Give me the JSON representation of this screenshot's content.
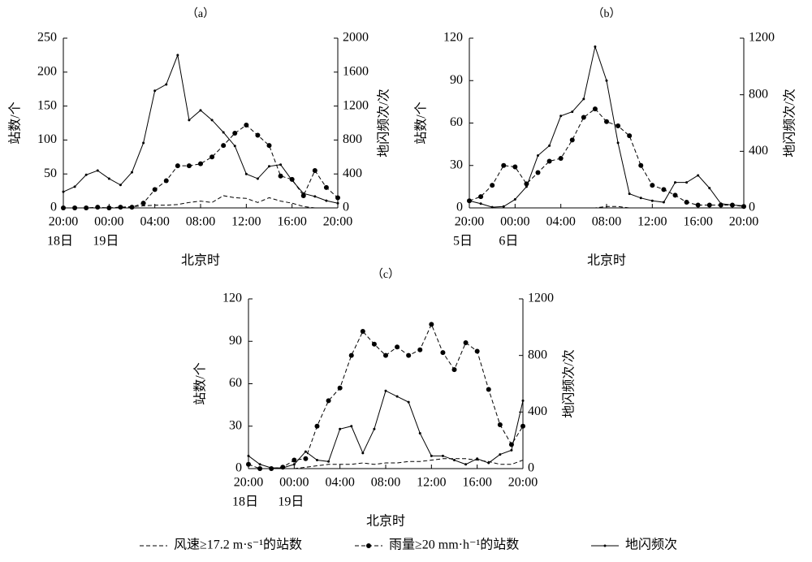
{
  "charts": [
    {
      "type": "line",
      "title": "（a）",
      "ylabel": "站数/个",
      "y2label": "地闪频次/次",
      "xlabel": "北京时",
      "x": [
        0,
        1,
        2,
        3,
        4,
        5,
        6,
        7,
        8,
        9,
        10,
        11,
        12,
        13,
        14,
        15,
        16,
        17,
        18,
        19,
        20,
        21,
        22,
        23,
        24
      ],
      "xlim": [
        0,
        24
      ],
      "xticks": [
        {
          "value": 0,
          "label": "20:00"
        },
        {
          "value": 4,
          "label": "00:00"
        },
        {
          "value": 8,
          "label": "04:00"
        },
        {
          "value": 12,
          "label": "08:00"
        },
        {
          "value": 16,
          "label": "12:00"
        },
        {
          "value": 20,
          "label": "16:00"
        },
        {
          "value": 24,
          "label": "20:00"
        }
      ],
      "day_labels": [
        {
          "value": 0,
          "label": "18日"
        },
        {
          "value": 4,
          "label": "19日"
        }
      ],
      "ylim": [
        0,
        250
      ],
      "yticks": [
        0,
        50,
        100,
        150,
        200,
        250
      ],
      "y2lim": [
        0,
        2000
      ],
      "y2ticks": [
        0,
        400,
        800,
        1200,
        1600,
        2000
      ],
      "series": [
        {
          "style": "dashed",
          "color": "#000000",
          "values": [
            0,
            0,
            0,
            0,
            0,
            1,
            2,
            3,
            4,
            4,
            5,
            8,
            10,
            8,
            18,
            15,
            14,
            8,
            15,
            10,
            7,
            2,
            0,
            0,
            0
          ]
        },
        {
          "style": "dashed-markers",
          "color": "#000000",
          "values": [
            0,
            0,
            0,
            1,
            0,
            1,
            1,
            7,
            27,
            40,
            62,
            62,
            65,
            75,
            92,
            110,
            122,
            107,
            92,
            47,
            42,
            18,
            55,
            30,
            15
          ]
        },
        {
          "style": "solid-markers",
          "color": "#000000",
          "axis": "y2",
          "values": [
            190,
            250,
            390,
            440,
            345,
            270,
            420,
            765,
            1380,
            1455,
            1800,
            1035,
            1150,
            1035,
            890,
            730,
            400,
            345,
            490,
            510,
            325,
            170,
            135,
            85,
            55
          ]
        }
      ]
    },
    {
      "type": "line",
      "title": "（b）",
      "ylabel": "站数/个",
      "y2label": "地闪频次/次",
      "xlabel": "北京时",
      "x": [
        0,
        1,
        2,
        3,
        4,
        5,
        6,
        7,
        8,
        9,
        10,
        11,
        12,
        13,
        14,
        15,
        16,
        17,
        18,
        19,
        20,
        21,
        22,
        23,
        24
      ],
      "xlim": [
        0,
        24
      ],
      "xticks": [
        {
          "value": 0,
          "label": "20:00"
        },
        {
          "value": 4,
          "label": "00:00"
        },
        {
          "value": 8,
          "label": "04:00"
        },
        {
          "value": 12,
          "label": "08:00"
        },
        {
          "value": 16,
          "label": "12:00"
        },
        {
          "value": 20,
          "label": "16:00"
        },
        {
          "value": 24,
          "label": "20:00"
        }
      ],
      "day_labels": [
        {
          "value": 0,
          "label": "5日"
        },
        {
          "value": 4,
          "label": "6日"
        }
      ],
      "ylim": [
        0,
        120
      ],
      "yticks": [
        0,
        30,
        60,
        90,
        120
      ],
      "y2lim": [
        0,
        1200
      ],
      "y2ticks": [
        0,
        400,
        800,
        1200
      ],
      "series": [
        {
          "style": "dashed",
          "color": "#000000",
          "values": [
            0,
            0,
            0,
            0,
            0,
            0,
            0,
            0,
            0,
            0,
            0,
            0,
            1,
            1,
            0,
            0,
            0,
            0,
            0,
            0,
            0,
            0,
            0,
            0,
            0
          ]
        },
        {
          "style": "dashed-markers",
          "color": "#000000",
          "values": [
            5,
            8,
            16,
            30,
            29,
            17,
            25,
            33,
            35,
            48,
            64,
            70,
            61,
            58,
            51,
            30,
            16,
            13,
            9,
            4,
            2,
            2,
            2,
            2,
            1
          ]
        },
        {
          "style": "solid-markers",
          "color": "#000000",
          "axis": "y2",
          "values": [
            50,
            30,
            5,
            10,
            60,
            150,
            370,
            440,
            650,
            680,
            770,
            1140,
            900,
            460,
            100,
            70,
            50,
            40,
            180,
            180,
            230,
            140,
            30,
            20,
            15
          ]
        }
      ]
    },
    {
      "type": "line",
      "title": "（c）",
      "ylabel": "站数/个",
      "y2label": "地闪频次/次",
      "xlabel": "北京时",
      "x": [
        0,
        1,
        2,
        3,
        4,
        5,
        6,
        7,
        8,
        9,
        10,
        11,
        12,
        13,
        14,
        15,
        16,
        17,
        18,
        19,
        20,
        21,
        22,
        23,
        24
      ],
      "xlim": [
        0,
        24
      ],
      "xticks": [
        {
          "value": 0,
          "label": "20:00"
        },
        {
          "value": 4,
          "label": "00:00"
        },
        {
          "value": 8,
          "label": "04:00"
        },
        {
          "value": 12,
          "label": "08:00"
        },
        {
          "value": 16,
          "label": "12:00"
        },
        {
          "value": 20,
          "label": "16:00"
        },
        {
          "value": 24,
          "label": "20:00"
        }
      ],
      "day_labels": [
        {
          "value": 0,
          "label": "18日"
        },
        {
          "value": 4,
          "label": "19日"
        }
      ],
      "ylim": [
        0,
        120
      ],
      "yticks": [
        0,
        30,
        60,
        90,
        120
      ],
      "y2lim": [
        0,
        1200
      ],
      "y2ticks": [
        0,
        400,
        800,
        1200
      ],
      "series": [
        {
          "style": "dashed",
          "color": "#000000",
          "values": [
            0,
            0,
            0,
            0,
            0,
            1,
            2,
            3,
            3,
            3,
            4,
            3,
            4,
            4,
            5,
            5,
            6,
            7,
            7,
            7,
            6,
            5,
            3,
            3,
            6
          ]
        },
        {
          "style": "dashed-markers",
          "color": "#000000",
          "values": [
            3,
            0,
            0,
            1,
            6,
            7,
            30,
            48,
            57,
            80,
            97,
            88,
            80,
            86,
            80,
            84,
            102,
            82,
            70,
            89,
            83,
            56,
            31,
            17,
            30
          ]
        },
        {
          "style": "solid-markers",
          "color": "#000000",
          "axis": "y2",
          "values": [
            90,
            30,
            5,
            5,
            30,
            120,
            60,
            50,
            280,
            300,
            110,
            280,
            550,
            510,
            470,
            250,
            90,
            90,
            60,
            30,
            70,
            40,
            100,
            130,
            480
          ]
        }
      ]
    }
  ],
  "legend": [
    "风速≥17.2 m·s⁻¹的站数",
    "雨量≥20 mm·h⁻¹的站数",
    "地闪频次"
  ]
}
